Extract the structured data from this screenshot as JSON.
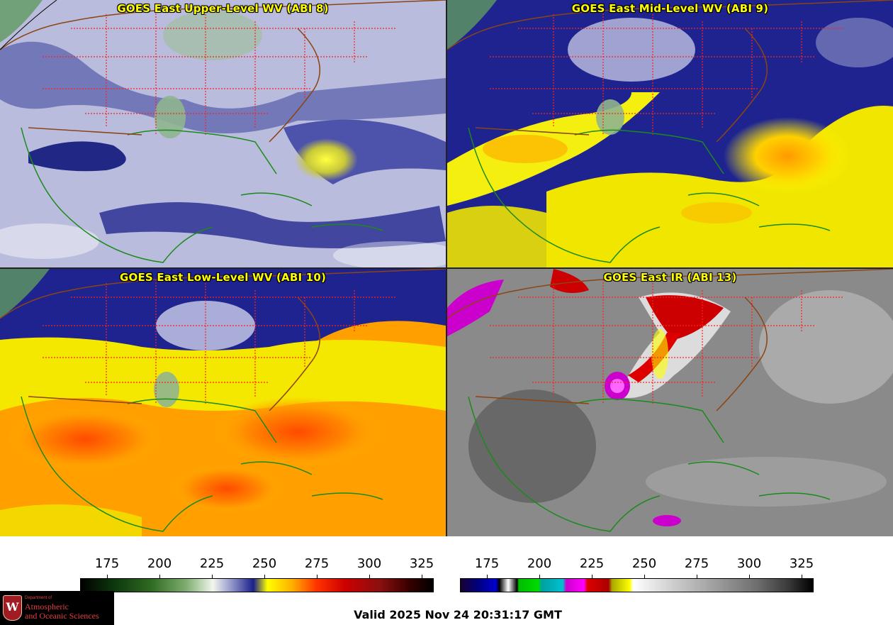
{
  "panels": [
    {
      "title": "GOES East Upper-Level WV (ABI 8)",
      "product": "upper-level-water-vapor"
    },
    {
      "title": "GOES East Mid-Level WV (ABI 9)",
      "product": "mid-level-water-vapor"
    },
    {
      "title": "GOES East Low-Level WV (ABI 10)",
      "product": "low-level-water-vapor"
    },
    {
      "title": "GOES East IR (ABI 13)",
      "product": "infrared"
    }
  ],
  "colorbars": [
    {
      "name": "water-vapor-scale",
      "ticks": [
        "175",
        "200",
        "225",
        "250",
        "275",
        "300",
        "325"
      ],
      "range": [
        163,
        330
      ]
    },
    {
      "name": "infrared-scale",
      "ticks": [
        "175",
        "200",
        "225",
        "250",
        "275",
        "300",
        "325"
      ],
      "range": [
        163,
        330
      ]
    }
  ],
  "valid_time": "Valid 2025 Nov 24 20:31:17 GMT",
  "logo": {
    "line1": "Department of",
    "line2": "Atmospheric",
    "line3": "and Oceanic Sciences",
    "letter": "W"
  },
  "colors": {
    "title_text": "#ffff00",
    "state_borders": "#ff2020",
    "coastline": "#1a8a1a",
    "country_borders": "#8b4513"
  }
}
